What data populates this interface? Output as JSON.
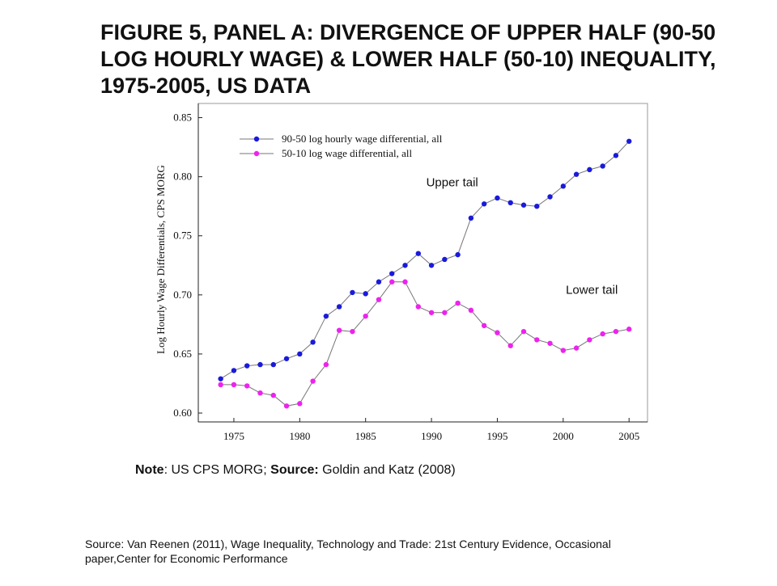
{
  "slide": {
    "title": "FIGURE 5, PANEL A: DIVERGENCE OF UPPER HALF (90-50 LOG HOURLY WAGE) & LOWER HALF (50-10) INEQUALITY, 1975-2005, US DATA",
    "note_label": "Note",
    "note_text": ": US CPS MORG; ",
    "source_label": "Source:",
    "source_text": " Goldin and Katz (2008)",
    "footer": "Source: Van Reenen (2011), Wage Inequality, Technology and Trade: 21st Century Evidence, Occasional paper,Center for Economic Performance"
  },
  "chart_data": {
    "type": "line",
    "title": "",
    "xlabel": "",
    "ylabel": "Log Hourly Wage Differentials, CPS MORG",
    "xlim": [
      1972.3,
      2006.4
    ],
    "ylim": [
      0.5925,
      0.862
    ],
    "xticks": [
      1975,
      1980,
      1985,
      1990,
      1995,
      2000,
      2005
    ],
    "yticks": [
      0.6,
      0.65,
      0.7,
      0.75,
      0.8,
      0.85
    ],
    "ytick_labels": [
      "0.60",
      "0.65",
      "0.70",
      "0.75",
      "0.80",
      "0.85"
    ],
    "legend_position": "top-left",
    "grid": false,
    "x": [
      1974,
      1975,
      1976,
      1977,
      1978,
      1979,
      1980,
      1981,
      1982,
      1983,
      1984,
      1985,
      1986,
      1987,
      1988,
      1989,
      1990,
      1991,
      1992,
      1993,
      1994,
      1995,
      1996,
      1997,
      1998,
      1999,
      2000,
      2001,
      2002,
      2003,
      2004,
      2005
    ],
    "series": [
      {
        "name": "90-50 log hourly wage differential, all",
        "color": "#1a1adc",
        "values": [
          0.629,
          0.636,
          0.64,
          0.641,
          0.641,
          0.646,
          0.65,
          0.66,
          0.682,
          0.69,
          0.702,
          0.701,
          0.711,
          0.718,
          0.725,
          0.735,
          0.725,
          0.73,
          0.734,
          0.765,
          0.777,
          0.782,
          0.778,
          0.776,
          0.775,
          0.783,
          0.792,
          0.802,
          0.806,
          0.809,
          0.818,
          0.83
        ]
      },
      {
        "name": "50-10 log wage differential, all",
        "color": "#ee22ee",
        "values": [
          0.624,
          0.624,
          0.623,
          0.617,
          0.615,
          0.606,
          0.608,
          0.627,
          0.641,
          0.67,
          0.669,
          0.682,
          0.696,
          0.711,
          0.711,
          0.69,
          0.685,
          0.685,
          0.693,
          0.687,
          0.674,
          0.668,
          0.657,
          0.669,
          0.662,
          0.659,
          0.653,
          0.655,
          0.662,
          0.667,
          0.669,
          0.671
        ]
      }
    ],
    "annotations": [
      {
        "text": "Upper tail",
        "x": 1989.6,
        "y": 0.792
      },
      {
        "text": "Lower tail",
        "x": 2000.2,
        "y": 0.701
      }
    ],
    "line_color": "#777777"
  }
}
